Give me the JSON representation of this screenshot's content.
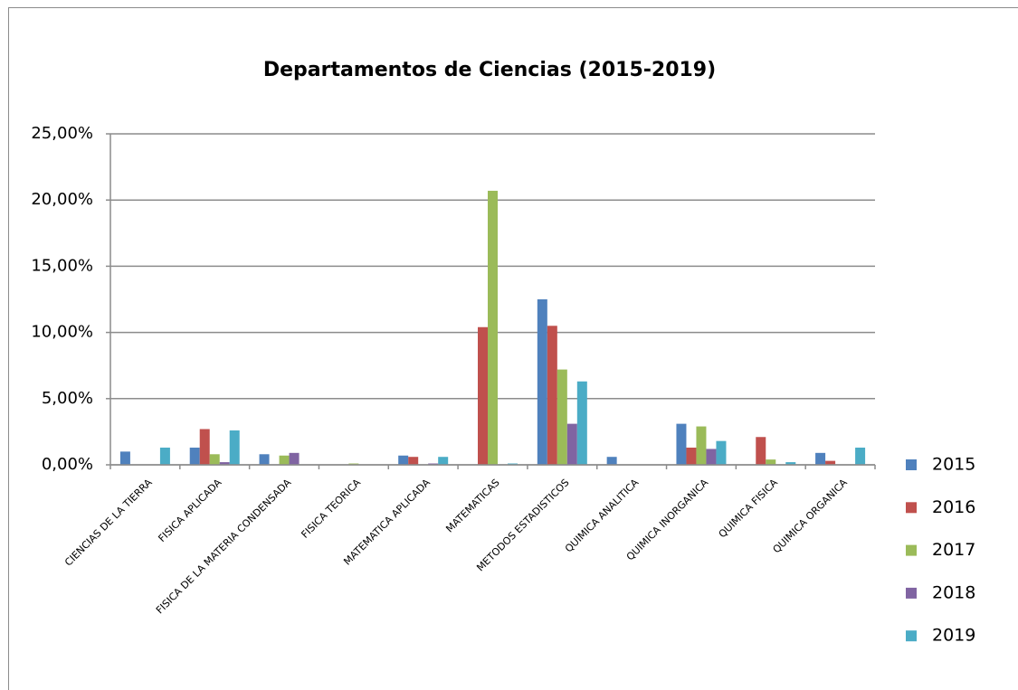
{
  "chart_data": {
    "type": "bar",
    "title": "Departamentos de Ciencias (2015-2019)",
    "categories": [
      "CIENCIAS DE LA TIERRA",
      "FISICA APLICADA",
      "FISICA DE LA MATERIA CONDENSADA",
      "FISICA TEORICA",
      "MATEMATICA APLICADA",
      "MATEMATICAS",
      "METODOS ESTADISTICOS",
      "QUIMICA ANALITICA",
      "QUIMICA INORGANICA",
      "QUIMICA FISICA",
      "QUIMICA ORGANICA"
    ],
    "series": [
      {
        "name": "2015",
        "color": "#4f81bd",
        "values": [
          1.0,
          1.3,
          0.8,
          0,
          0.7,
          0,
          12.5,
          0.6,
          3.1,
          0,
          0.9
        ]
      },
      {
        "name": "2016",
        "color": "#c0504d",
        "values": [
          0,
          2.7,
          0,
          0,
          0.6,
          10.4,
          10.5,
          0,
          1.3,
          2.1,
          0.3
        ]
      },
      {
        "name": "2017",
        "color": "#9bbb59",
        "values": [
          0,
          0.8,
          0.7,
          0.1,
          0,
          20.7,
          7.2,
          0,
          2.9,
          0.4,
          0
        ]
      },
      {
        "name": "2018",
        "color": "#8064a2",
        "values": [
          0,
          0.2,
          0.9,
          0,
          0.1,
          0,
          3.1,
          0,
          1.2,
          0,
          0
        ]
      },
      {
        "name": "2019",
        "color": "#4bacc6",
        "values": [
          1.3,
          2.6,
          0,
          0,
          0.6,
          0.1,
          6.3,
          0,
          1.8,
          0.2,
          1.3
        ]
      }
    ],
    "ylim": [
      0,
      25
    ],
    "yticks": [
      {
        "value": 0,
        "label": "0,00%"
      },
      {
        "value": 5,
        "label": "5,00%"
      },
      {
        "value": 10,
        "label": "10,00%"
      },
      {
        "value": 15,
        "label": "15,00%"
      },
      {
        "value": 20,
        "label": "20,00%"
      },
      {
        "value": 25,
        "label": "25,00%"
      }
    ],
    "grid": true,
    "legend": "right"
  }
}
